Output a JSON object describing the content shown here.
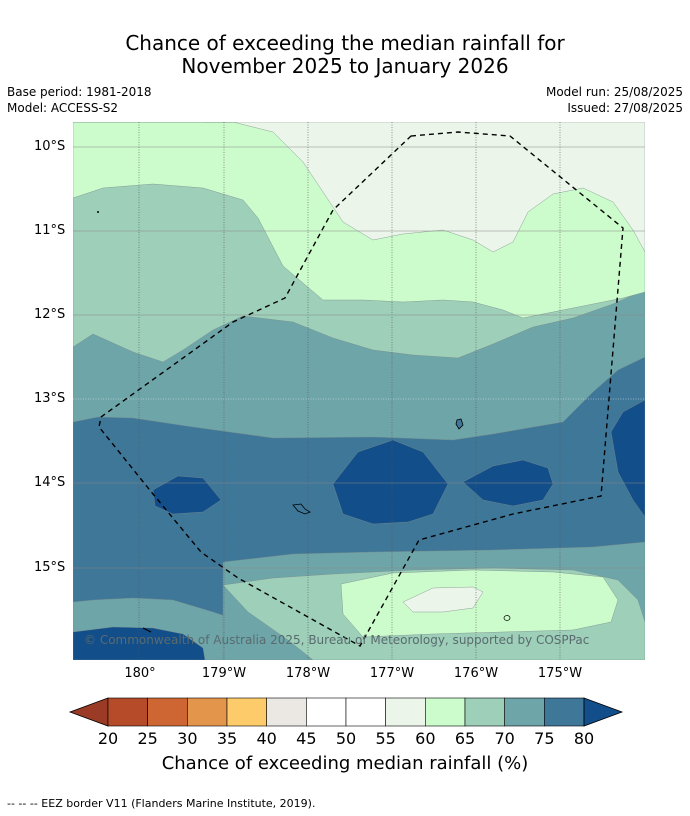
{
  "title": {
    "line1": "Chance of exceeding the median rainfall for",
    "line2": "November 2025 to January 2026"
  },
  "meta": {
    "base_period": "Base period: 1981-2018",
    "model": "Model: ACCESS-S2",
    "model_run": "Model run: 25/08/2025",
    "issued": "Issued: 27/08/2025"
  },
  "map": {
    "lat_labels": [
      "10°S",
      "11°S",
      "12°S",
      "13°S",
      "14°S",
      "15°S"
    ],
    "lon_labels": [
      "180°",
      "179°W",
      "178°W",
      "177°W",
      "176°W",
      "175°W"
    ],
    "copyright": "© Commonwealth of Australia 2025, Bureau of Meteorology, supported by COSPPac",
    "colors": {
      "c55_60": "#ebf5ea",
      "c60_65": "#ccfccb",
      "c65_70": "#9dcfb9",
      "c70_75": "#6da5a8",
      "c75_80": "#3f7799",
      "c80_plus": "#124e8a"
    }
  },
  "colorbar": {
    "ticks": [
      "20",
      "25",
      "30",
      "35",
      "40",
      "45",
      "50",
      "55",
      "60",
      "65",
      "70",
      "75",
      "80"
    ],
    "colors": [
      "#9b3b26",
      "#b54b28",
      "#cd6632",
      "#e3954c",
      "#fecb6a",
      "#ebe8e3",
      "#ffffff",
      "#ffffff",
      "#ebf5ea",
      "#ccfccb",
      "#9dcfb9",
      "#6da5a8",
      "#3f7799",
      "#124e8a"
    ],
    "label": "Chance of exceeding median rainfall (%)"
  },
  "footnote": "--  --  -- EEZ border V11 (Flanders Marine Institute, 2019)."
}
